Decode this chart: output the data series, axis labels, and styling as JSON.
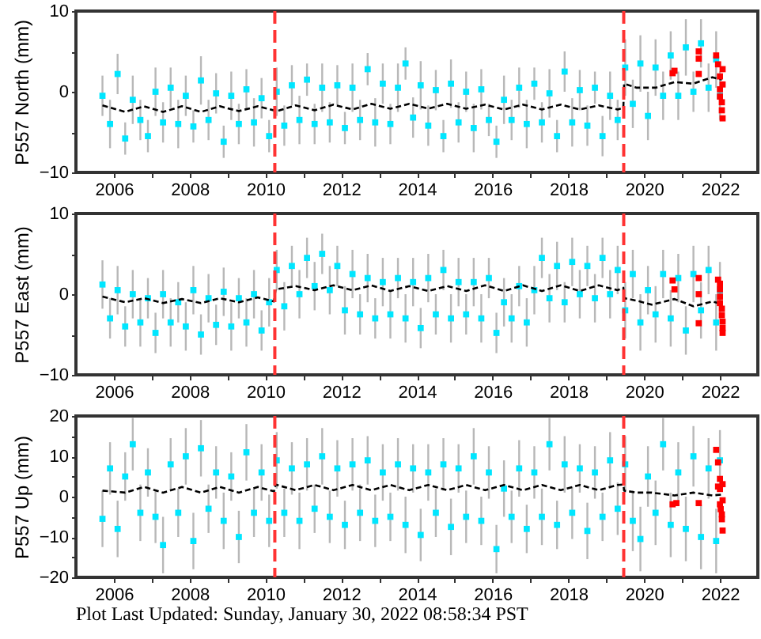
{
  "chart_data": [
    {
      "type": "scatter",
      "ylabel": "P557 North (mm)",
      "xlim": [
        2005,
        2023
      ],
      "xticks": [
        2006,
        {
          "value": 2007,
          "label": null
        },
        2008,
        {
          "value": 2009,
          "label": null
        },
        2010,
        {
          "value": 2011,
          "label": null
        },
        2012,
        {
          "value": 2013,
          "label": null
        },
        2014,
        {
          "value": 2015,
          "label": null
        },
        2016,
        {
          "value": 2017,
          "label": null
        },
        2018,
        {
          "value": 2019,
          "label": null
        },
        2020,
        {
          "value": 2021,
          "label": null
        },
        2022
      ],
      "ylim": [
        -10,
        10
      ],
      "yticks": [
        -10,
        {
          "value": -5,
          "label": null
        },
        0,
        {
          "value": 5,
          "label": null
        },
        10
      ],
      "series": [
        {
          "color": "#00e6ff",
          "marker": "square",
          "x": [
            2005.7,
            2005.9,
            2006.1,
            2006.3,
            2006.5,
            2006.7,
            2006.9,
            2007.1,
            2007.3,
            2007.5,
            2007.7,
            2007.9,
            2008.1,
            2008.3,
            2008.5,
            2008.7,
            2008.9,
            2009.1,
            2009.3,
            2009.5,
            2009.7,
            2009.9,
            2010.1,
            2010.3,
            2010.5,
            2010.7,
            2010.9,
            2011.1,
            2011.3,
            2011.5,
            2011.7,
            2011.9,
            2012.1,
            2012.3,
            2012.5,
            2012.7,
            2012.9,
            2013.1,
            2013.3,
            2013.5,
            2013.7,
            2013.9,
            2014.1,
            2014.3,
            2014.5,
            2014.7,
            2014.9,
            2015.1,
            2015.3,
            2015.5,
            2015.7,
            2015.9,
            2016.1,
            2016.3,
            2016.5,
            2016.7,
            2016.9,
            2017.1,
            2017.3,
            2017.5,
            2017.7,
            2017.9,
            2018.1,
            2018.3,
            2018.5,
            2018.7,
            2018.9,
            2019.1,
            2019.3,
            2019.5,
            2019.7,
            2019.9,
            2020.1,
            2020.3,
            2020.5,
            2020.7,
            2020.9,
            2021.1,
            2021.3,
            2021.5,
            2021.7,
            2021.9,
            2022.0
          ],
          "values": [
            -0.5,
            -4.0,
            2.2,
            -5.8,
            -1.0,
            -3.5,
            -5.5,
            0.0,
            -3.8,
            0.5,
            -4.0,
            -0.5,
            -4.3,
            1.4,
            -3.5,
            -0.2,
            -6.2,
            -0.5,
            -4.0,
            0.3,
            -3.8,
            -0.8,
            -5.5,
            0.0,
            -4.2,
            0.8,
            -3.5,
            1.5,
            -4.0,
            0.5,
            -3.8,
            0.8,
            -4.5,
            0.5,
            -3.5,
            2.8,
            -3.8,
            1.0,
            -4.0,
            0.5,
            3.5,
            -3.2,
            0.8,
            -4.2,
            0.2,
            -5.5,
            1.0,
            -3.8,
            0.0,
            -4.5,
            0.3,
            -3.5,
            -6.2,
            -1.0,
            -3.5,
            0.5,
            -4.0,
            1.0,
            -3.8,
            -0.2,
            -5.5,
            2.5,
            -3.8,
            0.2,
            -4.2,
            0.5,
            -5.5,
            -0.5,
            -3.5,
            3.0,
            -1.5,
            3.5,
            -3.0,
            3.0,
            -0.5,
            4.5,
            -0.5,
            5.5,
            0.0,
            6.0,
            0.5,
            4.0,
            -0.5
          ],
          "errors": [
            2.5,
            3.0,
            2.5,
            2.0,
            3.0,
            2.5,
            2.0,
            3.0,
            2.5,
            2.5,
            3.0,
            2.5,
            2.0,
            3.0,
            2.5,
            2.5,
            2.0,
            3.0,
            2.5,
            2.5,
            3.0,
            2.5,
            2.0,
            3.0,
            2.5,
            2.5,
            3.0,
            2.0,
            2.5,
            3.0,
            2.5,
            2.5,
            2.0,
            3.0,
            2.5,
            2.0,
            3.0,
            2.5,
            2.5,
            3.0,
            2.0,
            2.5,
            3.0,
            2.5,
            2.5,
            2.0,
            3.0,
            2.5,
            2.5,
            3.0,
            2.5,
            2.0,
            2.0,
            3.0,
            2.5,
            2.5,
            3.0,
            2.0,
            2.5,
            3.0,
            2.0,
            2.5,
            3.0,
            2.5,
            2.5,
            2.0,
            2.5,
            3.0,
            2.5,
            3.5,
            3.0,
            3.5,
            3.0,
            3.5,
            3.0,
            3.0,
            3.0,
            3.5,
            2.5,
            3.0,
            3.0,
            3.5,
            3.0
          ]
        },
        {
          "type": "line",
          "color": "#000000",
          "line_style": "dashed",
          "x": [
            2005.7,
            2006.3,
            2006.8,
            2007.3,
            2007.8,
            2008.3,
            2008.8,
            2009.3,
            2009.8,
            2010.3,
            2010.8,
            2011.3,
            2011.8,
            2012.3,
            2012.8,
            2013.3,
            2013.8,
            2014.3,
            2014.8,
            2015.3,
            2015.8,
            2016.3,
            2016.8,
            2017.3,
            2017.8,
            2018.3,
            2018.8,
            2019.3,
            2019.45,
            2019.47,
            2019.8,
            2020.3,
            2020.8,
            2021.3,
            2021.8,
            2022.05
          ],
          "values": [
            -1.7,
            -2.5,
            -1.8,
            -2.5,
            -1.8,
            -2.5,
            -1.8,
            -2.4,
            -1.8,
            -2.4,
            -1.7,
            -2.3,
            -1.6,
            -2.2,
            -1.5,
            -2.1,
            -1.5,
            -2.1,
            -1.5,
            -2.1,
            -1.6,
            -2.2,
            -1.6,
            -2.2,
            -1.6,
            -2.2,
            -1.7,
            -2.2,
            -2.0,
            1.0,
            0.5,
            0.5,
            1.2,
            1.0,
            1.8,
            1.5
          ]
        },
        {
          "color": "#ff0000",
          "marker": "square",
          "x": [
            2020.75,
            2020.8,
            2021.44,
            2021.44,
            2021.44,
            2021.9,
            2021.95,
            2022.0,
            2022.0,
            2022.0,
            2022.05,
            2022.05,
            2022.07,
            2022.07,
            2022.07
          ],
          "values": [
            2.3,
            2.6,
            5.0,
            4.1,
            2.2,
            4.5,
            3.4,
            1.9,
            0.3,
            -0.6,
            -1.3,
            -2.3,
            -3.3,
            0.9,
            2.8
          ]
        }
      ],
      "ref_lines": [
        {
          "axis": "x",
          "value": 2010.25,
          "color": "#ff3333",
          "line_style": "dashed"
        },
        {
          "axis": "x",
          "value": 2019.46,
          "color": "#ff3333",
          "line_style": "dashed"
        }
      ]
    },
    {
      "type": "scatter",
      "ylabel": "P557 East (mm)",
      "xlim": [
        2005,
        2023
      ],
      "xticks": [
        2006,
        {
          "value": 2007,
          "label": null
        },
        2008,
        {
          "value": 2009,
          "label": null
        },
        2010,
        {
          "value": 2011,
          "label": null
        },
        2012,
        {
          "value": 2013,
          "label": null
        },
        2014,
        {
          "value": 2015,
          "label": null
        },
        2016,
        {
          "value": 2017,
          "label": null
        },
        2018,
        {
          "value": 2019,
          "label": null
        },
        2020,
        {
          "value": 2021,
          "label": null
        },
        2022
      ],
      "ylim": [
        -10,
        10
      ],
      "yticks": [
        -10,
        {
          "value": -5,
          "label": null
        },
        0,
        {
          "value": 5,
          "label": null
        },
        10
      ],
      "series": [
        {
          "color": "#00e6ff",
          "marker": "square",
          "x": [
            2005.7,
            2005.9,
            2006.1,
            2006.3,
            2006.5,
            2006.7,
            2006.9,
            2007.1,
            2007.3,
            2007.5,
            2007.7,
            2007.9,
            2008.1,
            2008.3,
            2008.5,
            2008.7,
            2008.9,
            2009.1,
            2009.3,
            2009.5,
            2009.7,
            2009.9,
            2010.1,
            2010.3,
            2010.5,
            2010.7,
            2010.9,
            2011.1,
            2011.3,
            2011.5,
            2011.7,
            2011.9,
            2012.1,
            2012.3,
            2012.5,
            2012.7,
            2012.9,
            2013.1,
            2013.3,
            2013.5,
            2013.7,
            2013.9,
            2014.1,
            2014.3,
            2014.5,
            2014.7,
            2014.9,
            2015.1,
            2015.3,
            2015.5,
            2015.7,
            2015.9,
            2016.1,
            2016.3,
            2016.5,
            2016.7,
            2016.9,
            2017.1,
            2017.3,
            2017.5,
            2017.7,
            2017.9,
            2018.1,
            2018.3,
            2018.5,
            2018.7,
            2018.9,
            2019.1,
            2019.3,
            2019.5,
            2019.7,
            2019.9,
            2020.1,
            2020.3,
            2020.5,
            2020.7,
            2020.9,
            2021.1,
            2021.3,
            2021.5,
            2021.7,
            2021.9,
            2022.0
          ],
          "values": [
            1.2,
            -3.0,
            0.5,
            -4.0,
            0.0,
            -3.5,
            -0.5,
            -4.8,
            0.0,
            -3.5,
            -1.0,
            -4.0,
            0.5,
            -5.0,
            -0.5,
            -3.8,
            0.3,
            -4.0,
            -0.5,
            -3.5,
            0.0,
            -4.5,
            -1.0,
            3.0,
            -1.5,
            3.5,
            0.0,
            4.5,
            1.0,
            5.0,
            0.5,
            3.5,
            -2.0,
            2.5,
            -2.5,
            2.0,
            -3.0,
            1.5,
            -2.5,
            2.0,
            -3.0,
            1.5,
            -4.2,
            2.0,
            -2.5,
            3.0,
            -3.0,
            1.5,
            -2.5,
            1.5,
            -3.0,
            2.0,
            -4.8,
            -1.0,
            -3.0,
            1.0,
            -3.5,
            0.5,
            4.5,
            -0.5,
            3.5,
            -1.0,
            4.0,
            0.0,
            3.5,
            -0.5,
            4.5,
            0.0,
            3.0,
            -2.0,
            2.5,
            -3.5,
            0.5,
            -2.5,
            2.5,
            -3.0,
            2.0,
            -4.5,
            2.5,
            -2.0,
            3.0,
            -3.5,
            0.5
          ],
          "errors": [
            3.0,
            2.5,
            3.0,
            2.5,
            3.0,
            3.0,
            2.5,
            2.5,
            3.0,
            3.0,
            2.5,
            3.0,
            3.0,
            2.5,
            3.0,
            2.5,
            3.0,
            3.0,
            2.5,
            3.0,
            3.0,
            2.5,
            3.0,
            2.5,
            3.0,
            2.5,
            3.0,
            2.5,
            3.0,
            2.5,
            3.0,
            2.5,
            3.0,
            3.0,
            2.5,
            3.0,
            2.5,
            3.0,
            3.0,
            2.5,
            3.0,
            3.0,
            2.5,
            3.0,
            2.5,
            2.5,
            3.0,
            3.0,
            2.5,
            3.0,
            3.0,
            2.5,
            2.5,
            3.0,
            3.0,
            2.5,
            3.0,
            3.0,
            2.5,
            3.0,
            3.0,
            2.5,
            3.0,
            3.0,
            2.5,
            3.0,
            2.5,
            3.0,
            3.0,
            3.5,
            3.0,
            3.5,
            3.0,
            3.5,
            3.0,
            3.5,
            3.0,
            3.0,
            3.5,
            3.5,
            3.0,
            3.5,
            3.5
          ]
        },
        {
          "type": "line",
          "color": "#000000",
          "line_style": "dashed",
          "x": [
            2005.7,
            2006.3,
            2006.8,
            2007.3,
            2007.8,
            2008.3,
            2008.8,
            2009.3,
            2009.8,
            2010.23,
            2010.27,
            2010.8,
            2011.3,
            2011.8,
            2012.3,
            2012.8,
            2013.3,
            2013.8,
            2014.3,
            2014.8,
            2015.3,
            2015.8,
            2016.3,
            2016.8,
            2017.3,
            2017.8,
            2018.3,
            2018.8,
            2019.3,
            2019.45,
            2019.47,
            2019.8,
            2020.2,
            2020.8,
            2021.3,
            2021.8,
            2022.05
          ],
          "values": [
            -0.3,
            -1.0,
            -0.5,
            -1.1,
            -0.6,
            -1.1,
            -0.5,
            -1.0,
            -0.4,
            -0.9,
            0.6,
            1.0,
            0.5,
            1.1,
            0.5,
            1.1,
            0.4,
            1.0,
            0.4,
            1.0,
            0.4,
            1.1,
            0.4,
            1.1,
            0.4,
            1.1,
            0.4,
            1.1,
            0.5,
            0.8,
            -0.5,
            -0.8,
            -1.3,
            -0.6,
            -1.5,
            -0.9,
            -1.2
          ]
        },
        {
          "color": "#ff0000",
          "marker": "square",
          "x": [
            2020.75,
            2020.8,
            2021.44,
            2021.44,
            2021.44,
            2021.95,
            2022.0,
            2022.0,
            2022.0,
            2022.0,
            2022.05,
            2022.05,
            2022.07,
            2022.07,
            2022.07
          ],
          "values": [
            1.7,
            0.6,
            2.0,
            0.0,
            -3.6,
            1.8,
            1.3,
            0.6,
            -0.3,
            -1.1,
            -1.8,
            -2.6,
            -3.4,
            -4.2,
            -4.8
          ]
        }
      ],
      "ref_lines": [
        {
          "axis": "x",
          "value": 2010.25,
          "color": "#ff3333",
          "line_style": "dashed"
        },
        {
          "axis": "x",
          "value": 2019.46,
          "color": "#ff3333",
          "line_style": "dashed"
        }
      ]
    },
    {
      "type": "scatter",
      "ylabel": "P557 Up (mm)",
      "xlim": [
        2005,
        2023
      ],
      "xticks": [
        2006,
        {
          "value": 2007,
          "label": null
        },
        2008,
        {
          "value": 2009,
          "label": null
        },
        2010,
        {
          "value": 2011,
          "label": null
        },
        2012,
        {
          "value": 2013,
          "label": null
        },
        2014,
        {
          "value": 2015,
          "label": null
        },
        2016,
        {
          "value": 2017,
          "label": null
        },
        2018,
        {
          "value": 2019,
          "label": null
        },
        2020,
        {
          "value": 2021,
          "label": null
        },
        2022
      ],
      "ylim": [
        -20,
        20
      ],
      "yticks": [
        -20,
        {
          "value": -15,
          "label": null
        },
        -10,
        {
          "value": -5,
          "label": null
        },
        0,
        {
          "value": 5,
          "label": null
        },
        10,
        {
          "value": 15,
          "label": null
        },
        20
      ],
      "series": [
        {
          "color": "#00e6ff",
          "marker": "square",
          "x": [
            2005.7,
            2005.9,
            2006.1,
            2006.3,
            2006.5,
            2006.7,
            2006.9,
            2007.1,
            2007.3,
            2007.5,
            2007.7,
            2007.9,
            2008.1,
            2008.3,
            2008.5,
            2008.7,
            2008.9,
            2009.1,
            2009.3,
            2009.5,
            2009.7,
            2009.9,
            2010.1,
            2010.3,
            2010.5,
            2010.7,
            2010.9,
            2011.1,
            2011.3,
            2011.5,
            2011.7,
            2011.9,
            2012.1,
            2012.3,
            2012.5,
            2012.7,
            2012.9,
            2013.1,
            2013.3,
            2013.5,
            2013.7,
            2013.9,
            2014.1,
            2014.3,
            2014.5,
            2014.7,
            2014.9,
            2015.1,
            2015.3,
            2015.5,
            2015.7,
            2015.9,
            2016.1,
            2016.3,
            2016.5,
            2016.7,
            2016.9,
            2017.1,
            2017.3,
            2017.5,
            2017.7,
            2017.9,
            2018.1,
            2018.3,
            2018.5,
            2018.7,
            2018.9,
            2019.1,
            2019.3,
            2019.5,
            2019.7,
            2019.9,
            2020.1,
            2020.3,
            2020.5,
            2020.7,
            2020.9,
            2021.1,
            2021.3,
            2021.5,
            2021.7,
            2021.9,
            2022.0
          ],
          "values": [
            -5.5,
            7.0,
            -8.0,
            5.0,
            13.0,
            -4.0,
            6.0,
            -5.0,
            -12.0,
            8.0,
            -4.0,
            10.0,
            -11.0,
            12.0,
            -3.0,
            6.0,
            -6.0,
            5.0,
            -10.0,
            11.0,
            -4.0,
            6.0,
            -6.0,
            9.0,
            -4.0,
            7.0,
            -6.0,
            8.0,
            -3.0,
            10.0,
            -5.0,
            7.0,
            -7.0,
            8.0,
            -4.0,
            9.0,
            -6.0,
            6.0,
            -5.0,
            8.0,
            -7.0,
            7.0,
            -9.5,
            6.0,
            -4.0,
            8.0,
            -7.5,
            7.0,
            -5.0,
            10.0,
            -6.0,
            6.0,
            -13.0,
            2.0,
            -5.0,
            7.0,
            -8.0,
            6.0,
            -5.0,
            13.0,
            -7.0,
            8.0,
            -4.0,
            7.0,
            -8.5,
            6.0,
            -5.0,
            9.0,
            -3.0,
            8.0,
            -6.0,
            -10.5,
            5.0,
            -4.0,
            13.0,
            -7.0,
            6.0,
            -8.0,
            10.0,
            -10.0,
            7.0,
            -11.0,
            9.0
          ],
          "errors": [
            7.0,
            6.5,
            7.0,
            6.0,
            6.5,
            7.0,
            6.0,
            6.5,
            7.0,
            6.5,
            6.0,
            7.0,
            7.0,
            7.0,
            6.0,
            6.5,
            7.0,
            6.0,
            6.5,
            7.0,
            6.0,
            7.0,
            6.5,
            7.0,
            6.0,
            6.5,
            7.0,
            6.5,
            6.0,
            7.0,
            6.5,
            7.0,
            6.0,
            6.5,
            7.0,
            6.0,
            6.5,
            7.0,
            6.0,
            6.5,
            7.0,
            6.0,
            6.5,
            7.0,
            6.0,
            6.5,
            7.0,
            6.0,
            6.5,
            7.0,
            6.0,
            6.5,
            6.0,
            7.0,
            6.5,
            7.0,
            6.0,
            6.5,
            7.0,
            6.5,
            6.0,
            7.0,
            6.5,
            6.0,
            7.0,
            6.5,
            6.0,
            7.0,
            6.5,
            7.0,
            7.5,
            8.0,
            7.5,
            8.0,
            6.5,
            8.0,
            7.5,
            8.0,
            7.5,
            8.0,
            7.5,
            8.0,
            7.5
          ]
        },
        {
          "type": "line",
          "color": "#000000",
          "line_style": "dashed",
          "x": [
            2005.7,
            2006.3,
            2006.8,
            2007.3,
            2007.8,
            2008.3,
            2008.8,
            2009.3,
            2009.8,
            2010.23,
            2010.27,
            2010.8,
            2011.3,
            2011.8,
            2012.3,
            2012.8,
            2013.3,
            2013.8,
            2014.3,
            2014.8,
            2015.3,
            2015.8,
            2016.3,
            2016.8,
            2017.3,
            2017.8,
            2018.3,
            2018.8,
            2019.3,
            2019.45,
            2019.47,
            2019.8,
            2020.2,
            2020.8,
            2021.3,
            2021.8,
            2022.05
          ],
          "values": [
            1.5,
            1.0,
            2.4,
            1.0,
            2.4,
            1.0,
            2.4,
            1.0,
            2.4,
            1.3,
            3.0,
            1.6,
            2.9,
            1.6,
            2.9,
            1.6,
            2.9,
            1.6,
            2.9,
            1.6,
            2.9,
            1.6,
            2.9,
            1.6,
            2.9,
            1.6,
            2.9,
            1.6,
            2.9,
            3.0,
            1.5,
            1.0,
            1.0,
            0.3,
            1.0,
            0.3,
            0.5
          ]
        },
        {
          "color": "#ff0000",
          "marker": "square",
          "x": [
            2020.75,
            2020.85,
            2021.44,
            2021.9,
            2021.95,
            2021.95,
            2022.0,
            2022.0,
            2022.0,
            2022.02,
            2022.05,
            2022.05,
            2022.07,
            2022.07,
            2022.07
          ],
          "values": [
            -1.9,
            -1.6,
            -1.6,
            11.6,
            8.5,
            2.5,
            4.4,
            1.9,
            -1.9,
            -3.1,
            -4.4,
            -5.6,
            -8.4,
            -0.9,
            3.1
          ]
        }
      ],
      "ref_lines": [
        {
          "axis": "x",
          "value": 2010.25,
          "color": "#ff3333",
          "line_style": "dashed"
        },
        {
          "axis": "x",
          "value": 2019.46,
          "color": "#ff3333",
          "line_style": "dashed"
        }
      ],
      "annotations": [
        "Plot Last Updated:   Sunday, January 30, 2022 08:58:34 PST"
      ]
    }
  ]
}
